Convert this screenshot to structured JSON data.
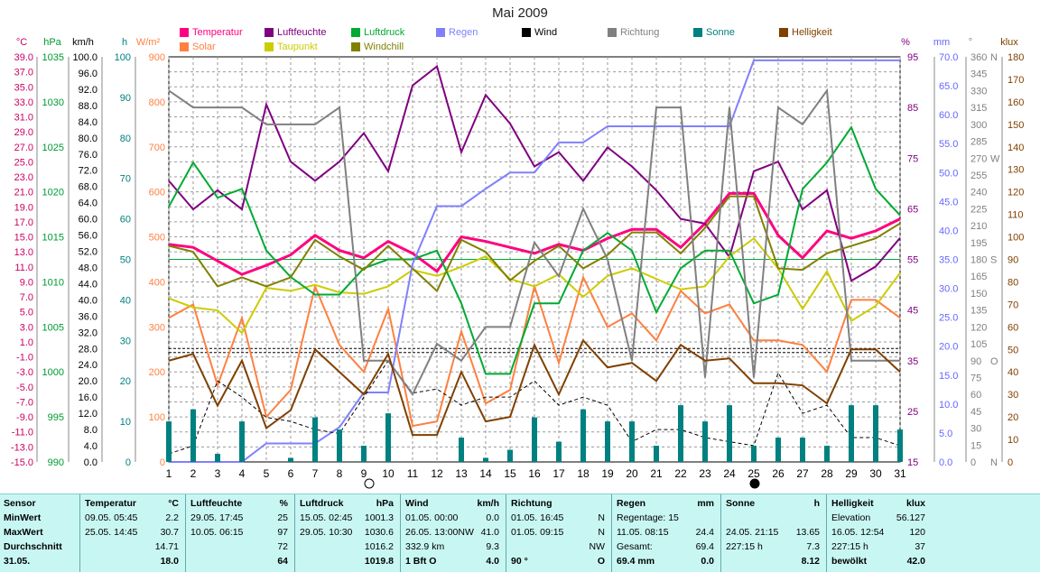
{
  "chart_data": {
    "type": "line",
    "title": "Mai 2009",
    "x": [
      1,
      2,
      3,
      4,
      5,
      6,
      7,
      8,
      9,
      10,
      11,
      12,
      13,
      14,
      15,
      16,
      17,
      18,
      19,
      20,
      21,
      22,
      23,
      24,
      25,
      26,
      27,
      28,
      29,
      30,
      31
    ],
    "left_axes": [
      {
        "unit": "°C",
        "color": "#cc0066",
        "ticks": [
          "39.0",
          "37.0",
          "35.0",
          "33.0",
          "31.0",
          "29.0",
          "27.0",
          "25.0",
          "23.0",
          "21.0",
          "19.0",
          "17.0",
          "15.0",
          "13.0",
          "11.0",
          "9.0",
          "7.0",
          "5.0",
          "3.0",
          "1.0",
          "-1.0",
          "-3.0",
          "-5.0",
          "-7.0",
          "-9.0",
          "-11.0",
          "-13.0",
          "-15.0"
        ]
      },
      {
        "unit": "hPa",
        "color": "#009933",
        "ticks": [
          "1035",
          "1030",
          "1025",
          "1020",
          "1015",
          "1010",
          "1005",
          "1000",
          "995",
          "990"
        ]
      },
      {
        "unit": "km/h",
        "color": "#000000",
        "ticks": [
          "100.0",
          "96.0",
          "92.0",
          "88.0",
          "84.0",
          "80.0",
          "76.0",
          "72.0",
          "68.0",
          "64.0",
          "60.0",
          "56.0",
          "52.0",
          "48.0",
          "44.0",
          "40.0",
          "36.0",
          "32.0",
          "28.0",
          "24.0",
          "20.0",
          "16.0",
          "12.0",
          "8.0",
          "4.0",
          "0.0"
        ]
      },
      {
        "unit": "h",
        "color": "#008080",
        "ticks": [
          "100",
          "90",
          "80",
          "70",
          "60",
          "50",
          "40",
          "30",
          "20",
          "10",
          "0"
        ]
      },
      {
        "unit": "W/m²",
        "color": "#ff8040",
        "ticks": [
          "900",
          "800",
          "700",
          "600",
          "500",
          "400",
          "300",
          "200",
          "100",
          "0"
        ]
      }
    ],
    "right_axes": [
      {
        "unit": "%",
        "color": "#800080",
        "ticks": [
          "95",
          "85",
          "75",
          "65",
          "55",
          "45",
          "35",
          "25",
          "15"
        ]
      },
      {
        "unit": "mm",
        "color": "#6666ff",
        "ticks": [
          "70.0",
          "65.0",
          "60.0",
          "55.0",
          "50.0",
          "45.0",
          "40.0",
          "35.0",
          "30.0",
          "25.0",
          "20.0",
          "15.0",
          "10.0",
          "5.0",
          "0.0"
        ]
      },
      {
        "unit": "°",
        "color": "#808080",
        "ticks": [
          "360",
          "345",
          "330",
          "315",
          "300",
          "285",
          "270",
          "255",
          "240",
          "225",
          "210",
          "195",
          "180",
          "165",
          "150",
          "135",
          "120",
          "105",
          "90",
          "75",
          "60",
          "45",
          "30",
          "15",
          "0"
        ],
        "dir_labels": [
          "N",
          "W",
          "S",
          "O",
          "N"
        ]
      },
      {
        "unit": "klux",
        "color": "#804000",
        "ticks": [
          "180",
          "170",
          "160",
          "150",
          "140",
          "130",
          "120",
          "110",
          "100",
          "90",
          "80",
          "70",
          "60",
          "50",
          "40",
          "30",
          "20",
          "10",
          "0"
        ]
      }
    ],
    "series": [
      {
        "name": "Temperatur",
        "color": "#ff0080",
        "axis": "temp",
        "values": [
          14.0,
          13.6,
          11.8,
          10.0,
          11.2,
          12.6,
          15.2,
          13.2,
          12.2,
          14.4,
          12.8,
          10.4,
          15.0,
          14.4,
          13.6,
          12.8,
          14.0,
          13.2,
          14.8,
          16.0,
          16.0,
          13.6,
          16.8,
          20.8,
          20.8,
          15.2,
          12.2,
          15.8,
          14.8,
          15.8,
          17.4
        ]
      },
      {
        "name": "Solar",
        "color": "#ff8040",
        "axis": "solar",
        "values": [
          320,
          350,
          170,
          320,
          100,
          160,
          390,
          260,
          200,
          340,
          80,
          90,
          290,
          130,
          160,
          390,
          220,
          410,
          300,
          330,
          270,
          380,
          330,
          350,
          270,
          270,
          260,
          200,
          360,
          360,
          320
        ]
      },
      {
        "name": "Luftfeuchte",
        "color": "#800080",
        "axis": "hum",
        "values": [
          74,
          68,
          72,
          68,
          90,
          78,
          74,
          78,
          84,
          76,
          94,
          98,
          80,
          92,
          86,
          77,
          80,
          74,
          81,
          77,
          72,
          66,
          65,
          58,
          76,
          78,
          68,
          72,
          53,
          56,
          62
        ]
      },
      {
        "name": "Taupunkt",
        "color": "#cccc00",
        "axis": "temp",
        "values": [
          6.8,
          5.6,
          5.2,
          2.2,
          8.2,
          7.8,
          8.6,
          7.6,
          7.4,
          8.4,
          10.6,
          9.8,
          11.0,
          12.4,
          9.4,
          8.4,
          10.0,
          7.0,
          9.8,
          10.8,
          9.4,
          8.0,
          8.4,
          12.4,
          14.8,
          10.8,
          5.4,
          10.4,
          3.8,
          5.8,
          10.2
        ]
      },
      {
        "name": "Luftdruck",
        "color": "#00aa33",
        "axis": "press",
        "values": [
          1019,
          1024,
          1020,
          1021,
          1014,
          1011,
          1009,
          1009,
          1012,
          1013,
          1013,
          1014,
          1008,
          1000,
          1000,
          1008,
          1008,
          1014,
          1016,
          1014,
          1007,
          1012,
          1014,
          1014,
          1008,
          1009,
          1021,
          1024,
          1028,
          1021,
          1018
        ]
      },
      {
        "name": "Windchill",
        "color": "#808000",
        "axis": "temp",
        "values": [
          13.8,
          13.0,
          8.4,
          9.6,
          8.4,
          9.6,
          14.6,
          12.4,
          10.6,
          13.8,
          10.8,
          7.8,
          14.6,
          13.0,
          9.2,
          11.8,
          13.8,
          10.8,
          12.6,
          15.6,
          15.6,
          12.8,
          16.2,
          20.4,
          20.4,
          10.8,
          10.6,
          12.8,
          13.8,
          14.8,
          16.8
        ]
      },
      {
        "name": "Regen",
        "color": "#8080ff",
        "axis": "rain",
        "values": [
          0,
          0,
          0,
          0,
          3.2,
          3.2,
          3.2,
          6.0,
          12.0,
          12.0,
          34.2,
          44.2,
          44.2,
          47.2,
          50.0,
          50.0,
          55.2,
          55.2,
          58.0,
          58.0,
          58.0,
          58.0,
          58.0,
          58.0,
          69.4,
          69.4,
          69.4,
          69.4,
          69.4,
          69.4,
          69.4
        ]
      },
      {
        "name": "Wind",
        "color": "#000000",
        "axis": "wind",
        "values": [
          2,
          4,
          20,
          16,
          11,
          10,
          8,
          7,
          16,
          25,
          17,
          18,
          14,
          16,
          16,
          20,
          14,
          16,
          14,
          5,
          8,
          8,
          6,
          5,
          4,
          22,
          12,
          14,
          6,
          6,
          4
        ]
      },
      {
        "name": "Richtung",
        "color": "#808080",
        "axis": "dir",
        "values": [
          330,
          315,
          315,
          315,
          300,
          300,
          300,
          315,
          90,
          90,
          60,
          105,
          90,
          120,
          120,
          195,
          165,
          225,
          180,
          90,
          315,
          315,
          75,
          315,
          75,
          315,
          300,
          330,
          90,
          90,
          90
        ]
      },
      {
        "name": "Sonne",
        "color": "#008080",
        "axis": "sun",
        "type": "bar",
        "values": [
          10,
          13,
          2,
          10,
          0,
          1,
          11,
          8,
          4,
          12,
          0,
          0,
          6,
          1,
          3,
          11,
          5,
          13,
          10,
          10,
          4,
          14,
          10,
          14,
          4,
          6,
          6,
          4,
          14,
          14,
          8
        ]
      },
      {
        "name": "Helligkeit",
        "color": "#804000",
        "axis": "klux",
        "values": [
          45,
          48,
          25,
          45,
          15,
          23,
          50,
          40,
          30,
          48,
          12,
          12,
          40,
          18,
          20,
          52,
          30,
          54,
          42,
          44,
          36,
          52,
          45,
          46,
          35,
          35,
          34,
          26,
          50,
          50,
          40
        ]
      }
    ],
    "legend": [
      {
        "label": "Temperatur",
        "color": "#ff0080"
      },
      {
        "label": "Solar",
        "color": "#ff8040"
      },
      {
        "label": "Luftfeuchte",
        "color": "#800080"
      },
      {
        "label": "Taupunkt",
        "color": "#cccc00"
      },
      {
        "label": "Luftdruck",
        "color": "#00aa33"
      },
      {
        "label": "Windchill",
        "color": "#808000"
      },
      {
        "label": "Regen",
        "color": "#8080ff"
      },
      {
        "label": "Wind",
        "color": "#000000"
      },
      {
        "label": "Richtung",
        "color": "#808080"
      },
      {
        "label": "Sonne",
        "color": "#008080"
      },
      {
        "label": "Helligkeit",
        "color": "#804000"
      }
    ],
    "grid": true
  },
  "stats": {
    "sensor": {
      "title": "Sensor",
      "rows": [
        "MinWert",
        "MaxWert",
        "Durchschnitt",
        "31.05."
      ]
    },
    "temperatur": {
      "title": "Temperatur",
      "unit": "°C",
      "rows": [
        [
          "09.05.  05:45",
          "2.2"
        ],
        [
          "25.05.  14:45",
          "30.7"
        ],
        [
          "",
          "14.71"
        ],
        [
          "",
          "18.0"
        ]
      ]
    },
    "luftfeuchte": {
      "title": "Luftfeuchte",
      "unit": "%",
      "rows": [
        [
          "29.05.  17:45",
          "25"
        ],
        [
          "10.05.  06:15",
          "97"
        ],
        [
          "",
          "72"
        ],
        [
          "",
          "64"
        ]
      ]
    },
    "luftdruck": {
      "title": "Luftdruck",
      "unit": "hPa",
      "rows": [
        [
          "15.05.  02:45",
          "1001.3"
        ],
        [
          "29.05.  10:30",
          "1030.6"
        ],
        [
          "",
          "1016.2"
        ],
        [
          "",
          "1019.8"
        ]
      ]
    },
    "wind": {
      "title": "Wind",
      "unit": "km/h",
      "rows": [
        [
          "01.05.  00:00",
          "0.0"
        ],
        [
          "26.05.  13:00NW",
          "41.0"
        ],
        [
          "332.9 km",
          "9.3"
        ],
        [
          "1 Bft O",
          "4.0"
        ]
      ]
    },
    "richtung": {
      "title": "Richtung",
      "rows": [
        [
          "01.05.  16:45",
          "N"
        ],
        [
          "01.05.  09:15",
          "N"
        ],
        [
          "",
          "NW"
        ],
        [
          "90 °",
          "O"
        ]
      ]
    },
    "regen": {
      "title": "Regen",
      "unit": "mm",
      "rows": [
        [
          "Regentage: 15",
          ""
        ],
        [
          "11.05.  08:15",
          "24.4"
        ],
        [
          "Gesamt:",
          "69.4"
        ],
        [
          "69.4 mm",
          "0.0"
        ]
      ]
    },
    "sonne": {
      "title": "Sonne",
      "unit": "h",
      "rows": [
        [
          "",
          ""
        ],
        [
          "24.05.  21:15",
          "13.65"
        ],
        [
          "227:15 h",
          "7.3"
        ],
        [
          "",
          "8.12"
        ]
      ]
    },
    "helligkeit": {
      "title": "Helligkeit",
      "unit": "klux",
      "rows": [
        [
          "Elevation",
          "56.127"
        ],
        [
          "16.05.  12:54",
          "120"
        ],
        [
          "227:15 h",
          "37"
        ],
        [
          "bewölkt",
          "42.0"
        ]
      ]
    }
  }
}
